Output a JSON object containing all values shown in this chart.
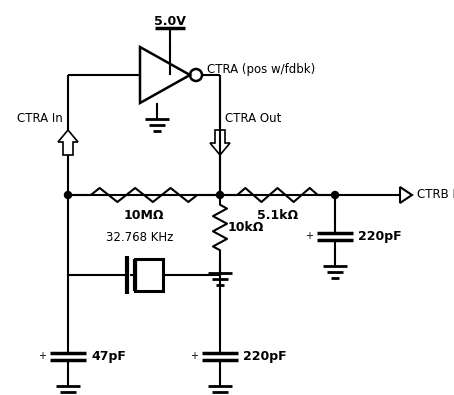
{
  "background_color": "#ffffff",
  "line_color": "#000000",
  "lw": 1.5,
  "lw_thick": 2.5,
  "labels": {
    "vcc": "5.0V",
    "inv_label": "CTRA (pos w/fdbk)",
    "ctra_in": "CTRA In",
    "ctra_out": "CTRA Out",
    "ctrb_in": "CTRB In",
    "r1": "10MΩ",
    "r2": "5.1kΩ",
    "r3": "10kΩ",
    "c1": "47pF",
    "c2": "220pF",
    "c3": "220pF",
    "xtal": "32.768 KHz"
  }
}
